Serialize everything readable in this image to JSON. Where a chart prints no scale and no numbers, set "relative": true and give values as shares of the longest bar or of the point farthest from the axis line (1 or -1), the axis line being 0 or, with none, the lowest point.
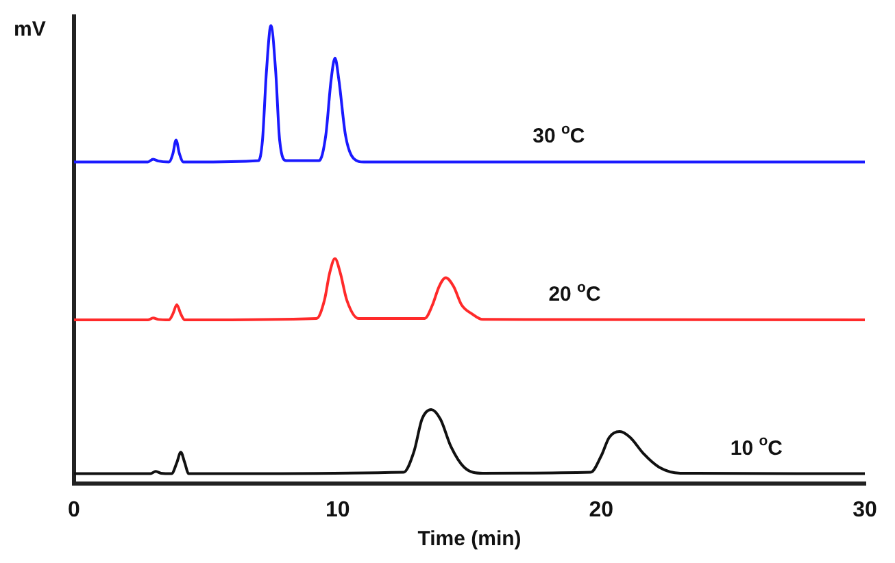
{
  "chart_data": {
    "type": "line",
    "relative": true,
    "xlabel": "Time (min)",
    "ylabel": "mV",
    "xlim": [
      0,
      30
    ],
    "xticks": [
      0,
      10,
      20,
      30
    ],
    "grid": false,
    "legend": false,
    "marker": "none",
    "line_style": "solid",
    "series": [
      {
        "name": "30 $^{o}$C",
        "color": "#1a1aff",
        "x": [
          0,
          2.8,
          3.0,
          3.2,
          3.6,
          3.75,
          3.87,
          4.0,
          4.15,
          4.5,
          7.0,
          7.15,
          7.3,
          7.47,
          7.65,
          7.8,
          8.05,
          9.3,
          9.55,
          9.75,
          9.9,
          10.05,
          10.3,
          10.6,
          11,
          30
        ],
        "values": [
          0.702,
          0.702,
          0.708,
          0.704,
          0.702,
          0.72,
          0.75,
          0.72,
          0.702,
          0.702,
          0.705,
          0.75,
          0.9,
          1.0,
          0.9,
          0.75,
          0.705,
          0.705,
          0.76,
          0.88,
          0.929,
          0.88,
          0.76,
          0.71,
          0.702,
          0.702
        ]
      },
      {
        "name": "20 $^{o}$C",
        "color": "#ff2a2a",
        "x": [
          0,
          2.8,
          3.0,
          3.2,
          3.6,
          3.75,
          3.9,
          4.05,
          4.2,
          4.5,
          9.2,
          9.5,
          9.7,
          9.9,
          10.1,
          10.35,
          10.8,
          13.3,
          13.6,
          13.85,
          14.1,
          14.4,
          14.7,
          15.1,
          15.5,
          30
        ],
        "values": [
          0.357,
          0.357,
          0.361,
          0.358,
          0.357,
          0.37,
          0.39,
          0.37,
          0.357,
          0.357,
          0.36,
          0.4,
          0.46,
          0.491,
          0.46,
          0.4,
          0.36,
          0.36,
          0.39,
          0.43,
          0.449,
          0.43,
          0.39,
          0.37,
          0.358,
          0.357
        ]
      },
      {
        "name": "10 $^{o}$C",
        "color": "#111111",
        "x": [
          0,
          2.9,
          3.1,
          3.3,
          3.7,
          3.9,
          4.05,
          4.2,
          4.35,
          4.7,
          12.5,
          12.9,
          13.2,
          13.55,
          13.9,
          14.3,
          14.8,
          15.5,
          19.6,
          20.0,
          20.3,
          20.7,
          21.1,
          21.6,
          22.2,
          23.0,
          30
        ],
        "values": [
          0.021,
          0.021,
          0.026,
          0.022,
          0.021,
          0.045,
          0.068,
          0.045,
          0.021,
          0.021,
          0.024,
          0.07,
          0.14,
          0.161,
          0.14,
          0.08,
          0.035,
          0.022,
          0.024,
          0.06,
          0.1,
          0.113,
          0.1,
          0.065,
          0.035,
          0.022,
          0.021
        ]
      }
    ]
  }
}
